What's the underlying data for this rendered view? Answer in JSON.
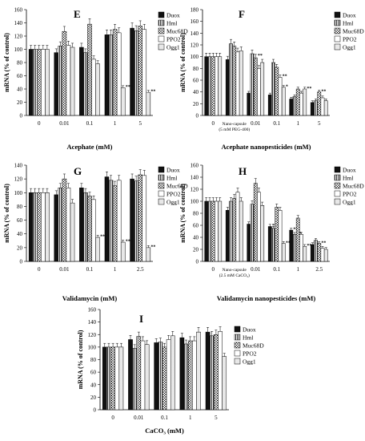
{
  "figure": {
    "patterns": {
      "Duox": "solid",
      "Hml": "vertical",
      "Muc68D": "crosshatch",
      "PPO2": "white",
      "Ogg1": "dots"
    },
    "colors": {
      "ink": "#000000",
      "bar_fill_dark": "#111111",
      "dots": "#777777"
    }
  },
  "chart_data": [
    {
      "panel": "E",
      "type": "bar",
      "ylabel": "mRNA (% of control)",
      "xlabel": "Acephate (mM)",
      "ylim": [
        0,
        160
      ],
      "yticks": [
        0,
        20,
        40,
        60,
        80,
        100,
        120,
        140,
        160
      ],
      "categories": [
        "0",
        "0.01",
        "0.1",
        "1",
        "5"
      ],
      "series": [
        {
          "name": "Duox",
          "values": [
            100,
            95,
            103,
            122,
            132
          ]
        },
        {
          "name": "Hml",
          "values": [
            100,
            105,
            95,
            122,
            128
          ]
        },
        {
          "name": "Muc68D",
          "values": [
            100,
            127,
            138,
            130,
            135
          ]
        },
        {
          "name": "PPO2",
          "values": [
            100,
            106,
            85,
            125,
            130
          ]
        },
        {
          "name": "Ogg1",
          "values": [
            100,
            103,
            78,
            42,
            35
          ]
        }
      ],
      "annotations": [
        {
          "category": "1",
          "series": "Ogg1",
          "text": "**"
        },
        {
          "category": "5",
          "series": "Ogg1",
          "text": "**"
        }
      ],
      "legend": [
        "Duox",
        "Hml",
        "Muc68D",
        "PPO2",
        "Ogg1"
      ],
      "legend_position": "top-right"
    },
    {
      "panel": "F",
      "type": "bar",
      "ylabel": "mRNA (% of control)",
      "xlabel": "Acephate nanopesticides (mM)",
      "ylim": [
        0,
        180
      ],
      "yticks": [
        0,
        20,
        40,
        60,
        80,
        100,
        120,
        140,
        160,
        180
      ],
      "categories": [
        "0",
        "Nano-capsule\n(5 mM PEG-400)",
        "0.01",
        "0.1",
        "1",
        "5"
      ],
      "series": [
        {
          "name": "Duox",
          "values": [
            100,
            95,
            38,
            35,
            28,
            22
          ]
        },
        {
          "name": "Hml",
          "values": [
            100,
            122,
            105,
            90,
            32,
            25
          ]
        },
        {
          "name": "Muc68D",
          "values": [
            100,
            118,
            98,
            82,
            45,
            40
          ]
        },
        {
          "name": "PPO2",
          "values": [
            100,
            108,
            80,
            65,
            38,
            30
          ]
        },
        {
          "name": "Ogg1",
          "values": [
            100,
            110,
            90,
            48,
            45,
            25
          ]
        }
      ],
      "annotations": [
        {
          "category": "0.01",
          "series": "Duox",
          "text": "**"
        },
        {
          "category": "0.01",
          "series": "Muc68D",
          "text": "**"
        },
        {
          "category": "0.1",
          "series": "Duox",
          "text": "**"
        },
        {
          "category": "0.1",
          "series": "PPO2",
          "text": "**"
        },
        {
          "category": "0.1",
          "series": "Ogg1",
          "text": "*"
        },
        {
          "category": "1",
          "series": "Duox",
          "text": "**"
        },
        {
          "category": "1",
          "series": "Hml",
          "text": "**"
        },
        {
          "category": "1",
          "series": "Ogg1",
          "text": "**"
        },
        {
          "category": "5",
          "series": "Muc68D",
          "text": "**"
        }
      ],
      "legend": [
        "Duox",
        "Hml",
        "Muc68D",
        "PPO2",
        "Ogg1"
      ],
      "legend_position": "top-right"
    },
    {
      "panel": "G",
      "type": "bar",
      "ylabel": "mRNA (% of control)",
      "xlabel": "Validamycin (mM)",
      "ylim": [
        0,
        140
      ],
      "yticks": [
        0,
        20,
        40,
        60,
        80,
        100,
        120,
        140
      ],
      "categories": [
        "0",
        "0.01",
        "0.1",
        "1",
        "2.5"
      ],
      "series": [
        {
          "name": "Duox",
          "values": [
            100,
            97,
            107,
            123,
            120
          ]
        },
        {
          "name": "Hml",
          "values": [
            100,
            107,
            100,
            118,
            117
          ]
        },
        {
          "name": "Muc68D",
          "values": [
            100,
            120,
            95,
            110,
            126
          ]
        },
        {
          "name": "PPO2",
          "values": [
            100,
            107,
            90,
            118,
            125
          ]
        },
        {
          "name": "Ogg1",
          "values": [
            100,
            85,
            35,
            28,
            20
          ]
        }
      ],
      "annotations": [
        {
          "category": "0.1",
          "series": "Ogg1",
          "text": "**"
        },
        {
          "category": "1",
          "series": "Ogg1",
          "text": "**"
        },
        {
          "category": "2.5",
          "series": "Ogg1",
          "text": "**"
        }
      ],
      "legend": [
        "Duox",
        "Hml",
        "Muc68D",
        "PPO2",
        "Ogg1"
      ],
      "legend_position": "top-right"
    },
    {
      "panel": "H",
      "type": "bar",
      "ylabel": "mRNA (% of control)",
      "xlabel": "Validamycin nanopesticides (mM)",
      "ylim": [
        0,
        160
      ],
      "yticks": [
        0,
        20,
        40,
        60,
        80,
        100,
        120,
        140,
        160
      ],
      "categories": [
        "0",
        "Nano-capsule\n(2.5 mM CaCO₃)",
        "0.01",
        "0.1",
        "1",
        "2.5"
      ],
      "series": [
        {
          "name": "Duox",
          "values": [
            100,
            85,
            62,
            58,
            52,
            28
          ]
        },
        {
          "name": "Hml",
          "values": [
            100,
            100,
            95,
            55,
            45,
            35
          ]
        },
        {
          "name": "Muc68D",
          "values": [
            100,
            105,
            130,
            90,
            72,
            30
          ]
        },
        {
          "name": "PPO2",
          "values": [
            100,
            115,
            115,
            85,
            45,
            22
          ]
        },
        {
          "name": "Ogg1",
          "values": [
            100,
            100,
            93,
            30,
            25,
            20
          ]
        }
      ],
      "annotations": [
        {
          "category": "0.01",
          "series": "Duox",
          "text": "**"
        },
        {
          "category": "0.1",
          "series": "Duox",
          "text": "**"
        },
        {
          "category": "0.1",
          "series": "Hml",
          "text": "**"
        },
        {
          "category": "0.1",
          "series": "Ogg1",
          "text": "**"
        },
        {
          "category": "1",
          "series": "Duox",
          "text": "**"
        },
        {
          "category": "1",
          "series": "Hml",
          "text": "**"
        },
        {
          "category": "1",
          "series": "Ogg1",
          "text": "**"
        },
        {
          "category": "2.5",
          "series": "Muc68D",
          "text": "**"
        }
      ],
      "legend": [
        "Duox",
        "Hml",
        "Muc68D",
        "PPO2",
        "Ogg1"
      ],
      "legend_position": "top-right"
    },
    {
      "panel": "I",
      "type": "bar",
      "ylabel": "mRNA (% of control)",
      "xlabel": "CaCO₃ (mM)",
      "ylim": [
        0,
        160
      ],
      "yticks": [
        0,
        20,
        40,
        60,
        80,
        100,
        120,
        140,
        160
      ],
      "categories": [
        "0",
        "0.01",
        "0.1",
        "1",
        "5"
      ],
      "series": [
        {
          "name": "Duox",
          "values": [
            100,
            112,
            107,
            115,
            124
          ]
        },
        {
          "name": "Hml",
          "values": [
            100,
            98,
            108,
            105,
            118
          ]
        },
        {
          "name": "Muc68D",
          "values": [
            100,
            117,
            100,
            110,
            120
          ]
        },
        {
          "name": "PPO2",
          "values": [
            100,
            110,
            112,
            110,
            125
          ]
        },
        {
          "name": "Ogg1",
          "values": [
            100,
            104,
            118,
            124,
            85
          ]
        }
      ],
      "annotations": [],
      "legend": [
        "Duox",
        "Hml",
        "Muc68D",
        "PPO2",
        "Ogg1"
      ],
      "legend_position": "right"
    }
  ]
}
